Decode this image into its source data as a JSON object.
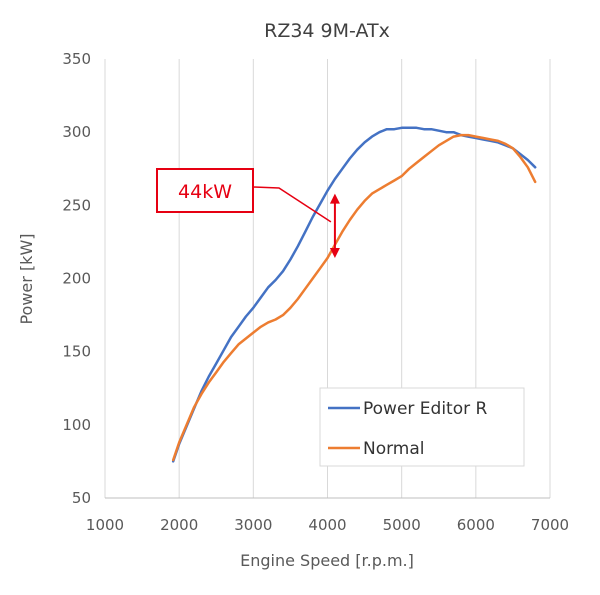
{
  "chart_data": {
    "type": "line",
    "title": "RZ34 9M-ATx",
    "xlabel": "Engine Speed [r.p.m.]",
    "ylabel": "Power [kW]",
    "xlim": [
      1000,
      7000
    ],
    "ylim": [
      50,
      350
    ],
    "xticks": [
      1000,
      2000,
      3000,
      4000,
      5000,
      6000,
      7000
    ],
    "yticks": [
      50,
      100,
      150,
      200,
      250,
      300,
      350
    ],
    "xtick_labels": [
      "1000",
      "2000",
      "3000",
      "4000",
      "5000",
      "6000",
      "7000"
    ],
    "ytick_labels": [
      "50",
      "100",
      "150",
      "200",
      "250",
      "300",
      "350"
    ],
    "grid": "vertical",
    "legend_position": "bottom-right",
    "series": [
      {
        "name": "Power Editor R",
        "color": "#4472c4",
        "x": [
          1920,
          2000,
          2100,
          2200,
          2300,
          2400,
          2500,
          2600,
          2700,
          2800,
          2900,
          3000,
          3100,
          3200,
          3300,
          3400,
          3500,
          3600,
          3700,
          3800,
          3900,
          4000,
          4100,
          4200,
          4300,
          4400,
          4500,
          4600,
          4700,
          4800,
          4900,
          5000,
          5100,
          5200,
          5300,
          5400,
          5500,
          5600,
          5700,
          5800,
          5900,
          6000,
          6100,
          6200,
          6300,
          6400,
          6500,
          6600,
          6700,
          6800
        ],
        "y": [
          75,
          87,
          99,
          111,
          123,
          133,
          142,
          151,
          160,
          167,
          174,
          180,
          187,
          194,
          199,
          205,
          213,
          222,
          232,
          242,
          251,
          260,
          268,
          275,
          282,
          288,
          293,
          297,
          300,
          302,
          302,
          303,
          303,
          303,
          302,
          302,
          301,
          300,
          300,
          298,
          297,
          296,
          295,
          294,
          293,
          291,
          289,
          285,
          281,
          276
        ]
      },
      {
        "name": "Normal",
        "color": "#ed7d31",
        "x": [
          1920,
          2000,
          2100,
          2200,
          2300,
          2400,
          2500,
          2600,
          2700,
          2800,
          2900,
          3000,
          3100,
          3200,
          3300,
          3400,
          3500,
          3600,
          3700,
          3800,
          3900,
          4000,
          4100,
          4200,
          4300,
          4400,
          4500,
          4600,
          4700,
          4800,
          4900,
          5000,
          5100,
          5200,
          5300,
          5400,
          5500,
          5600,
          5700,
          5800,
          5900,
          6000,
          6100,
          6200,
          6300,
          6400,
          6500,
          6600,
          6700,
          6800
        ],
        "y": [
          76,
          88,
          100,
          112,
          121,
          129,
          136,
          143,
          149,
          155,
          159,
          163,
          167,
          170,
          172,
          175,
          180,
          186,
          193,
          200,
          207,
          214,
          223,
          232,
          240,
          247,
          253,
          258,
          261,
          264,
          267,
          270,
          275,
          279,
          283,
          287,
          291,
          294,
          297,
          298,
          298,
          297,
          296,
          295,
          294,
          292,
          289,
          283,
          276,
          266
        ]
      }
    ],
    "annotations": [
      {
        "text": "44kW",
        "x_rpm": 4100,
        "y_from": 258,
        "y_to": 214,
        "color": "#e60012"
      }
    ]
  }
}
